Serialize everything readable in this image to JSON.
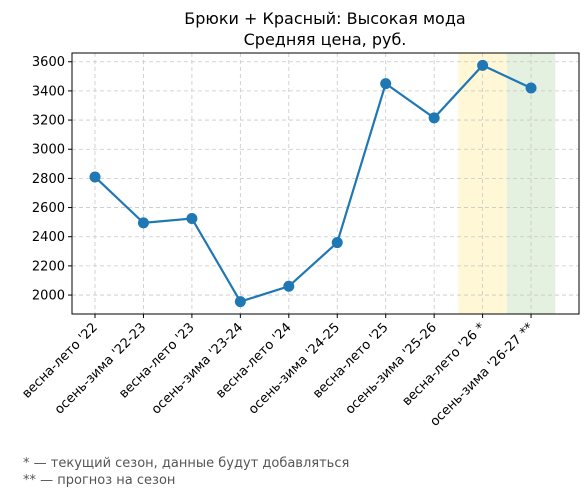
{
  "chart_data": {
    "type": "line",
    "title": "Брюки + Красный: Высокая мода",
    "subtitle": "Средняя цена, руб.",
    "xlabel": "",
    "ylabel": "",
    "categories": [
      "весна-лето '22",
      "осень-зима '22-23",
      "весна-лето '23",
      "осень-зима '23-24",
      "весна-лето '24",
      "осень-зима '24-25",
      "весна-лето '25",
      "осень-зима '25-26",
      "весна-лето '26 *",
      "осень-зима '26-27 **"
    ],
    "series": [
      {
        "values": [
          2810,
          2495,
          2525,
          1955,
          2060,
          2360,
          3450,
          3215,
          3575,
          3420
        ],
        "color": "#1f77b4"
      }
    ],
    "ylim": [
      1870,
      3660
    ],
    "yticks": [
      2000,
      2200,
      2400,
      2600,
      2800,
      3000,
      3200,
      3400,
      3600
    ],
    "grid": true,
    "highlights": [
      {
        "category": "весна-лето '26 *",
        "color": "#fff7d6",
        "meaning": "current season"
      },
      {
        "category": "осень-зима '26-27 **",
        "color": "#e5f1e0",
        "meaning": "forecast"
      }
    ]
  },
  "footnotes": {
    "current": "* — текущий сезон, данные будут добавляться",
    "forecast": "** — прогноз на сезон"
  }
}
